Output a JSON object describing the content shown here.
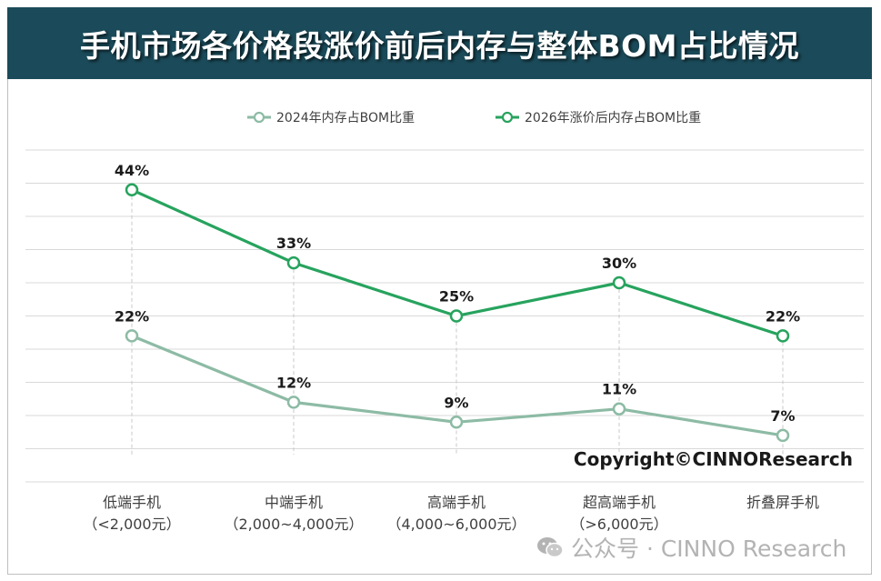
{
  "title": "手机市场各价格段涨价前后内存与整体BOM占比情况",
  "copyright": "Copyright©CINNOResearch",
  "watermark": "公众号 · CINNO Research",
  "colors": {
    "title_bg": "#1b4b5a",
    "series_2024": "#8dbba5",
    "series_2026": "#27a35e",
    "grid": "#d9d9d9"
  },
  "chart_data": {
    "type": "line",
    "categories": [
      [
        "低端手机",
        "（<2,000元）"
      ],
      [
        "中端手机",
        "（2,000~4,000元）"
      ],
      [
        "高端手机",
        "（4,000~6,000元）"
      ],
      [
        "超高端手机",
        "（>6,000元）"
      ],
      [
        "折叠屏手机"
      ]
    ],
    "series": [
      {
        "name": "2024年内存占BOM比重",
        "values": [
          22,
          12,
          9,
          11,
          7
        ],
        "labels": [
          "22%",
          "12%",
          "9%",
          "11%",
          "7%"
        ]
      },
      {
        "name": "2026年涨价后内存占BOM比重",
        "values": [
          44,
          33,
          25,
          30,
          22
        ],
        "labels": [
          "44%",
          "33%",
          "25%",
          "30%",
          "22%"
        ]
      }
    ],
    "ylim": [
      0,
      50
    ],
    "grid": true,
    "legend": "top"
  }
}
